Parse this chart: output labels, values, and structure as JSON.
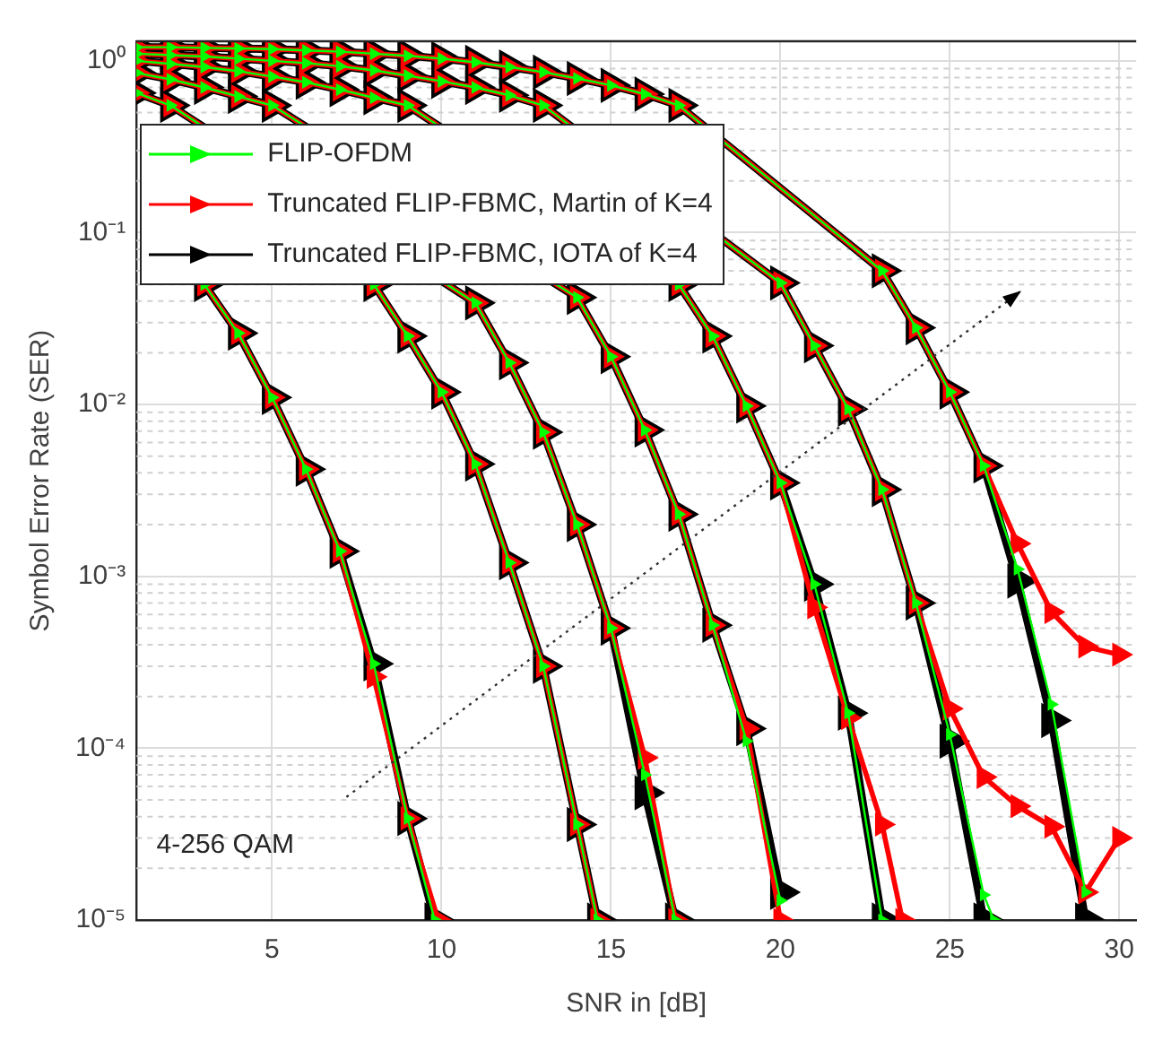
{
  "chart_data": {
    "type": "line",
    "xlabel": "SNR in [dB]",
    "ylabel": "Symbol Error Rate (SER)",
    "xlim": [
      1,
      30.5
    ],
    "xticks": [
      5,
      10,
      15,
      20,
      25,
      30
    ],
    "ylim": [
      1e-05,
      1.3
    ],
    "yticks": [
      {
        "value": 1e-05,
        "label": "10⁻⁵"
      },
      {
        "value": 0.0001,
        "label": "10⁻⁴"
      },
      {
        "value": 0.001,
        "label": "10⁻³"
      },
      {
        "value": 0.01,
        "label": "10⁻²"
      },
      {
        "value": 0.1,
        "label": "10⁻¹"
      },
      {
        "value": 1,
        "label": "10⁰"
      }
    ],
    "log": "y",
    "grid": true,
    "legend": "top left",
    "marker": "triangle",
    "line_style": "solid",
    "annotations": [
      "4-256 QAM"
    ],
    "series": [
      {
        "name": "FLIP-OFDM",
        "color": "#00ff00",
        "x": [
          3,
          4,
          5,
          6,
          7,
          8,
          9,
          9.8,
          null,
          8,
          9,
          10,
          11,
          12,
          13,
          14,
          14.6,
          null,
          1,
          2,
          11,
          12,
          13,
          14,
          15,
          16,
          16.9,
          null,
          1,
          2,
          3,
          4,
          5,
          14,
          15,
          16,
          17,
          18,
          19,
          20,
          null,
          1,
          2,
          3,
          4,
          5,
          6,
          7,
          8,
          9,
          17,
          18,
          19,
          20,
          21,
          22,
          23,
          null,
          1,
          2,
          3,
          4,
          5,
          6,
          7,
          8,
          9,
          10,
          11,
          12,
          13,
          20,
          21,
          22,
          23,
          24,
          25,
          26,
          26.3,
          null,
          1,
          2,
          3,
          4,
          5,
          6,
          7,
          8,
          9,
          10,
          11,
          12,
          13,
          14,
          15,
          16,
          17,
          23,
          24,
          25,
          26,
          27,
          28,
          29
        ],
        "values": [
          0.05,
          0.026,
          0.011,
          0.0042,
          0.0014,
          0.00031,
          3.9e-05,
          1e-05,
          null,
          0.05,
          0.025,
          0.0118,
          0.0045,
          0.0012,
          0.0003,
          3.6e-05,
          1e-05,
          null,
          0.65,
          0.55,
          0.039,
          0.0175,
          0.0069,
          0.002,
          0.0005,
          7e-05,
          1e-05,
          null,
          0.85,
          0.78,
          0.7,
          0.62,
          0.55,
          0.042,
          0.019,
          0.0071,
          0.0023,
          0.00052,
          0.00011,
          1.3e-05,
          null,
          1,
          0.96,
          0.92,
          0.87,
          0.81,
          0.75,
          0.68,
          0.61,
          0.55,
          0.05,
          0.025,
          0.0098,
          0.0035,
          0.0009,
          0.00016,
          1e-05,
          null,
          1.1,
          1.08,
          1.06,
          1.03,
          1,
          0.97,
          0.93,
          0.88,
          0.82,
          0.76,
          0.7,
          0.63,
          0.55,
          0.051,
          0.022,
          0.0094,
          0.0032,
          0.0007,
          0.00012,
          1.4e-05,
          1e-05,
          null,
          1.2,
          1.2,
          1.19,
          1.18,
          1.17,
          1.15,
          1.13,
          1.1,
          1.07,
          1.03,
          0.98,
          0.92,
          0.86,
          0.79,
          0.72,
          0.64,
          0.55,
          0.06,
          0.028,
          0.0118,
          0.0044,
          0.0011,
          0.00018,
          1.45e-05
        ]
      },
      {
        "name": "Truncated FLIP-FBMC, Martin of K=4",
        "color": "#ff0000",
        "x": [
          3,
          4,
          5,
          6,
          7,
          8,
          9,
          9.9,
          null,
          8,
          9,
          10,
          11,
          12,
          13,
          14,
          14.6,
          null,
          1,
          2,
          11,
          12,
          13,
          14,
          15,
          16,
          16.9,
          null,
          1,
          2,
          3,
          4,
          5,
          14,
          15,
          16,
          17,
          18,
          19,
          20,
          null,
          1,
          2,
          3,
          4,
          5,
          6,
          7,
          8,
          9,
          17,
          18,
          19,
          20,
          21,
          22,
          23,
          23.6,
          null,
          1,
          2,
          3,
          4,
          5,
          6,
          7,
          8,
          9,
          10,
          11,
          12,
          13,
          20,
          21,
          22,
          23,
          24,
          25,
          26,
          27,
          28,
          29,
          30,
          null,
          1,
          2,
          3,
          4,
          5,
          6,
          7,
          8,
          9,
          10,
          11,
          12,
          13,
          14,
          15,
          16,
          17,
          23,
          24,
          25,
          26,
          27,
          28,
          29,
          30
        ],
        "values": [
          0.05,
          0.026,
          0.011,
          0.0042,
          0.0014,
          0.00026,
          3.9e-05,
          1e-05,
          null,
          0.05,
          0.025,
          0.0118,
          0.0045,
          0.0012,
          0.0003,
          3.6e-05,
          1e-05,
          null,
          0.65,
          0.55,
          0.039,
          0.0175,
          0.0069,
          0.002,
          0.0005,
          8.8e-05,
          1e-05,
          null,
          0.85,
          0.78,
          0.7,
          0.62,
          0.55,
          0.042,
          0.019,
          0.0071,
          0.0023,
          0.00052,
          0.00013,
          1e-05,
          null,
          1,
          0.96,
          0.92,
          0.87,
          0.81,
          0.75,
          0.68,
          0.61,
          0.55,
          0.05,
          0.025,
          0.0098,
          0.0035,
          0.00066,
          0.00015,
          3.6e-05,
          1e-05,
          null,
          1.1,
          1.08,
          1.06,
          1.03,
          1,
          0.97,
          0.93,
          0.88,
          0.82,
          0.76,
          0.7,
          0.63,
          0.55,
          0.051,
          0.022,
          0.0094,
          0.0032,
          0.0007,
          0.00017,
          6.8e-05,
          4.6e-05,
          3.5e-05,
          1.45e-05,
          3e-05,
          null,
          1.2,
          1.2,
          1.19,
          1.18,
          1.17,
          1.15,
          1.13,
          1.1,
          1.07,
          1.03,
          0.98,
          0.92,
          0.86,
          0.79,
          0.72,
          0.64,
          0.55,
          0.06,
          0.028,
          0.0118,
          0.0044,
          0.00155,
          0.00062,
          0.00039,
          0.00035
        ]
      },
      {
        "name": "Truncated FLIP-FBMC, IOTA of K=4",
        "color": "#000000",
        "x": [
          3,
          4,
          5,
          6,
          7,
          8,
          9,
          9.8,
          null,
          8,
          9,
          10,
          11,
          12,
          13,
          14,
          14.6,
          null,
          1,
          2,
          11,
          12,
          13,
          14,
          15,
          16,
          16.9,
          null,
          1,
          2,
          3,
          4,
          5,
          14,
          15,
          16,
          17,
          18,
          19,
          20,
          null,
          1,
          2,
          3,
          4,
          5,
          6,
          7,
          8,
          9,
          17,
          18,
          19,
          20,
          21,
          22,
          23,
          null,
          1,
          2,
          3,
          4,
          5,
          6,
          7,
          8,
          9,
          10,
          11,
          12,
          13,
          20,
          21,
          22,
          23,
          24,
          25,
          26,
          null,
          1,
          2,
          3,
          4,
          5,
          6,
          7,
          8,
          9,
          10,
          11,
          12,
          13,
          14,
          15,
          16,
          17,
          23,
          24,
          25,
          26,
          27,
          28,
          29
        ],
        "values": [
          0.05,
          0.026,
          0.011,
          0.0042,
          0.0014,
          0.00031,
          3.9e-05,
          1e-05,
          null,
          0.05,
          0.025,
          0.0118,
          0.0045,
          0.0012,
          0.0003,
          3.6e-05,
          1e-05,
          null,
          0.65,
          0.55,
          0.039,
          0.0175,
          0.0069,
          0.002,
          0.0005,
          5.5e-05,
          1e-05,
          null,
          0.85,
          0.78,
          0.7,
          0.62,
          0.55,
          0.042,
          0.019,
          0.0071,
          0.0023,
          0.00052,
          0.00013,
          1.45e-05,
          null,
          1,
          0.96,
          0.92,
          0.87,
          0.81,
          0.75,
          0.68,
          0.61,
          0.55,
          0.05,
          0.025,
          0.0098,
          0.0035,
          0.0009,
          0.00016,
          1e-05,
          null,
          1.1,
          1.08,
          1.06,
          1.03,
          1,
          0.97,
          0.93,
          0.88,
          0.82,
          0.76,
          0.7,
          0.63,
          0.55,
          0.051,
          0.022,
          0.0094,
          0.0032,
          0.0007,
          0.00011,
          1e-05,
          null,
          1.2,
          1.2,
          1.19,
          1.18,
          1.17,
          1.15,
          1.13,
          1.1,
          1.07,
          1.03,
          0.98,
          0.92,
          0.86,
          0.79,
          0.72,
          0.64,
          0.55,
          0.06,
          0.028,
          0.0118,
          0.0044,
          0.00094,
          0.000145,
          1e-05
        ]
      }
    ]
  }
}
